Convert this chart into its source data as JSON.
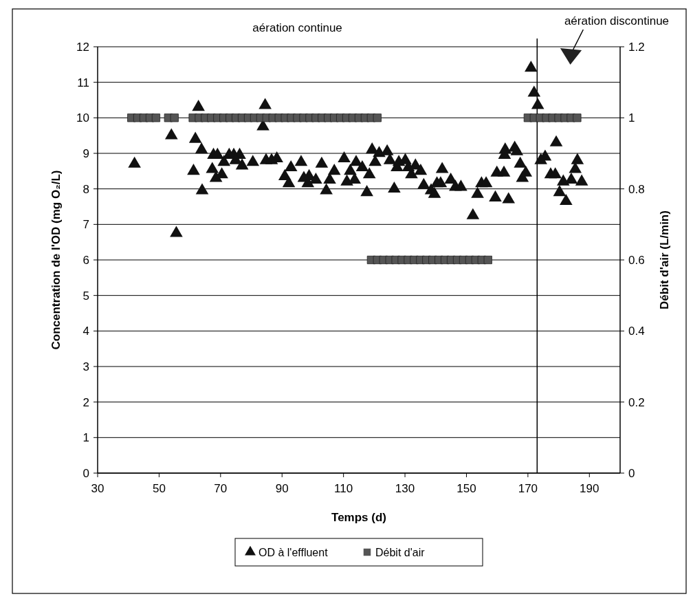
{
  "chart_data": {
    "type": "scatter",
    "xlabel": "Temps (d)",
    "ylabel": "Concentration de l'OD (mg O₂/L)",
    "y2label": "Débit d'air (L/min)",
    "xlim": [
      30,
      200
    ],
    "xticks": [
      30,
      50,
      70,
      90,
      110,
      130,
      150,
      170,
      190
    ],
    "ylim": [
      0,
      12
    ],
    "yticks": [
      0,
      1,
      2,
      3,
      4,
      5,
      6,
      7,
      8,
      9,
      10,
      11,
      12
    ],
    "y2lim": [
      0,
      1.2
    ],
    "y2ticks": [
      0,
      0.2,
      0.4,
      0.6,
      0.8,
      1,
      1.2
    ],
    "grid": "y",
    "legend": "bottom",
    "ref_lines": [
      {
        "axis": "x",
        "value": 173,
        "color": "#000000"
      }
    ],
    "annotations": [
      "aération continue",
      "aération discontinue"
    ],
    "series": [
      {
        "name": "OD à l'effluent",
        "marker": "triangle",
        "color": "#111111",
        "x": [
          42,
          54,
          55.6,
          62.8,
          61.8,
          63.8,
          61.2,
          64,
          67.7,
          69,
          67.3,
          68.5,
          70.4,
          71.1,
          72.8,
          74.3,
          76.2,
          74.9,
          77,
          80.5,
          84.8,
          86.6,
          88.3,
          84.5,
          83.8,
          92.9,
          90.9,
          92.2,
          96.2,
          97.1,
          102.9,
          98.8,
          101,
          98.4,
          104.4,
          107,
          105.5,
          110.2,
          114.1,
          116.1,
          112.2,
          111.1,
          113.6,
          118.4,
          117.6,
          119.3,
          121.6,
          124.2,
          120.3,
          125.1,
          128,
          130.1,
          127.4,
          131.1,
          133.4,
          135.1,
          132.1,
          126.5,
          142.1,
          136.1,
          138.5,
          139.6,
          140.4,
          141.6,
          144.9,
          146.4,
          148.2,
          152.1,
          153.6,
          154.9,
          156.4,
          159.4,
          159.9,
          162.2,
          162.6,
          163.7,
          171,
          172,
          173.2,
          179.2,
          165.7,
          162.4,
          166.4,
          167.5,
          174.2,
          175.6,
          186.1,
          185.4,
          168.2,
          169.3,
          177.4,
          178.9,
          181.5,
          184.1,
          187.5,
          180.3,
          182.4
        ],
        "values": [
          8.7,
          9.5,
          6.75,
          10.3,
          9.4,
          9.1,
          8.5,
          7.95,
          8.95,
          8.95,
          8.55,
          8.3,
          8.4,
          8.75,
          8.95,
          8.95,
          8.95,
          8.8,
          8.65,
          8.75,
          8.8,
          8.8,
          8.85,
          10.35,
          9.75,
          8.6,
          8.35,
          8.15,
          8.75,
          8.3,
          8.7,
          8.35,
          8.25,
          8.15,
          7.95,
          8.5,
          8.25,
          8.85,
          8.75,
          8.6,
          8.5,
          8.2,
          8.25,
          8.4,
          7.9,
          9.1,
          9,
          9.05,
          8.75,
          8.8,
          8.75,
          8.8,
          8.6,
          8.6,
          8.65,
          8.5,
          8.4,
          8,
          8.55,
          8.1,
          7.95,
          7.85,
          8.15,
          8.15,
          8.25,
          8.05,
          8.05,
          7.25,
          7.85,
          8.15,
          8.15,
          7.75,
          8.45,
          8.45,
          9.1,
          7.7,
          11.4,
          10.7,
          10.35,
          9.3,
          9.15,
          8.95,
          9.05,
          8.7,
          8.8,
          8.9,
          8.8,
          8.55,
          8.3,
          8.45,
          8.4,
          8.4,
          8.2,
          8.25,
          8.2,
          7.9,
          7.65
        ]
      },
      {
        "name": "Débit d'air",
        "marker": "square",
        "axis": "y2",
        "color": "#555555",
        "x": [
          41,
          43,
          45,
          47,
          49,
          53,
          55,
          61,
          63,
          65,
          67,
          69,
          71,
          73,
          75,
          77,
          79,
          81,
          83,
          85,
          87,
          89,
          91,
          93,
          95,
          97,
          99,
          101,
          103,
          105,
          107,
          109,
          111,
          113,
          115,
          117,
          119,
          121,
          119,
          121,
          123,
          125,
          127,
          129,
          131,
          133,
          135,
          137,
          139,
          141,
          143,
          145,
          147,
          149,
          151,
          153,
          155,
          157,
          170,
          172,
          174,
          176,
          178,
          180,
          182,
          184,
          186
        ],
        "values": [
          1,
          1,
          1,
          1,
          1,
          1,
          1,
          1,
          1,
          1,
          1,
          1,
          1,
          1,
          1,
          1,
          1,
          1,
          1,
          1,
          1,
          1,
          1,
          1,
          1,
          1,
          1,
          1,
          1,
          1,
          1,
          1,
          1,
          1,
          1,
          1,
          1,
          1,
          0.6,
          0.6,
          0.6,
          0.6,
          0.6,
          0.6,
          0.6,
          0.6,
          0.6,
          0.6,
          0.6,
          0.6,
          0.6,
          0.6,
          0.6,
          0.6,
          0.6,
          0.6,
          0.6,
          0.6,
          1,
          1,
          1,
          1,
          1,
          1,
          1,
          1,
          1
        ]
      }
    ]
  }
}
